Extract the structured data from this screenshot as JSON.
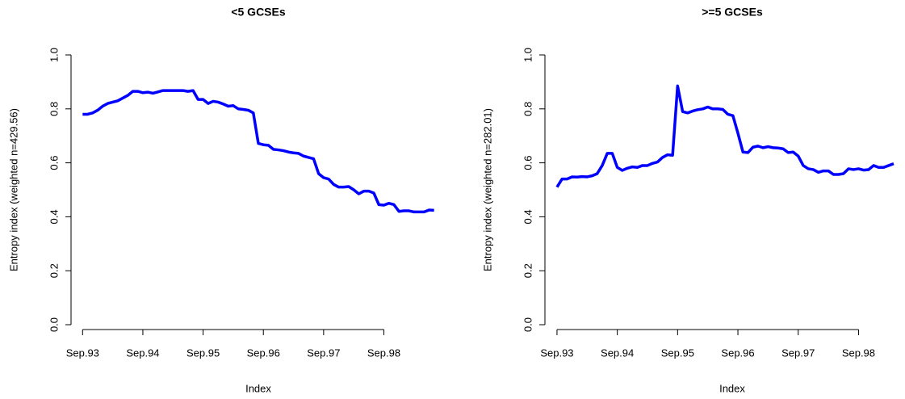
{
  "chart_data": [
    {
      "type": "line",
      "title": "<5 GCSEs",
      "xlabel": "Index",
      "ylabel": "Entropy index (weighted n=429.56)",
      "x": [
        0,
        1,
        2,
        3,
        4,
        5,
        6,
        7,
        8,
        9,
        10,
        11,
        12,
        13,
        14,
        15,
        16,
        17,
        18,
        19,
        20,
        21,
        22,
        23,
        24,
        25,
        26,
        27,
        28,
        29,
        30,
        31,
        32,
        33,
        34,
        35,
        36,
        37,
        38,
        39,
        40,
        41,
        42,
        43,
        44,
        45,
        46,
        47,
        48,
        49,
        50,
        51,
        52,
        53,
        54,
        55,
        56,
        57,
        58,
        59,
        60,
        61,
        62,
        63,
        64,
        65,
        66,
        67,
        68,
        69,
        70
      ],
      "series": [
        {
          "name": "<5 GCSEs",
          "color": "#0000ff",
          "values": [
            0.78,
            0.78,
            0.785,
            0.795,
            0.81,
            0.82,
            0.825,
            0.83,
            0.84,
            0.85,
            0.865,
            0.865,
            0.86,
            0.862,
            0.858,
            0.863,
            0.868,
            0.868,
            0.868,
            0.868,
            0.868,
            0.865,
            0.868,
            0.835,
            0.835,
            0.82,
            0.828,
            0.825,
            0.818,
            0.81,
            0.812,
            0.8,
            0.798,
            0.795,
            0.785,
            0.672,
            0.667,
            0.665,
            0.65,
            0.648,
            0.645,
            0.64,
            0.637,
            0.635,
            0.625,
            0.62,
            0.615,
            0.56,
            0.545,
            0.54,
            0.52,
            0.51,
            0.51,
            0.512,
            0.5,
            0.485,
            0.495,
            0.495,
            0.488,
            0.445,
            0.443,
            0.45,
            0.445,
            0.42,
            0.422,
            0.422,
            0.418,
            0.418,
            0.418,
            0.425,
            0.424
          ]
        }
      ],
      "xlim": [
        -2.3,
        72.3
      ],
      "xticks": [
        {
          "value": 0,
          "label": "Sep.93"
        },
        {
          "value": 12,
          "label": "Sep.94"
        },
        {
          "value": 24,
          "label": "Sep.95"
        },
        {
          "value": 36,
          "label": "Sep.96"
        },
        {
          "value": 48,
          "label": "Sep.97"
        },
        {
          "value": 60,
          "label": "Sep.98"
        }
      ],
      "ylim": [
        0,
        1
      ],
      "yticks": [
        {
          "value": 0,
          "label": "0.0"
        },
        {
          "value": 0.2,
          "label": "0.2"
        },
        {
          "value": 0.4,
          "label": "0.4"
        },
        {
          "value": 0.6,
          "label": "0.6"
        },
        {
          "value": 0.8,
          "label": "0.8"
        },
        {
          "value": 1,
          "label": "1.0"
        }
      ]
    },
    {
      "type": "line",
      "title": ">=5 GCSEs",
      "xlabel": "Index",
      "ylabel": "Entropy index (weighted n=282.01)",
      "x": [
        0,
        1,
        2,
        3,
        4,
        5,
        6,
        7,
        8,
        9,
        10,
        11,
        12,
        13,
        14,
        15,
        16,
        17,
        18,
        19,
        20,
        21,
        22,
        23,
        24,
        25,
        26,
        27,
        28,
        29,
        30,
        31,
        32,
        33,
        34,
        35,
        36,
        37,
        38,
        39,
        40,
        41,
        42,
        43,
        44,
        45,
        46,
        47,
        48,
        49,
        50,
        51,
        52,
        53,
        54,
        55,
        56,
        57,
        58,
        59,
        60,
        61,
        62,
        63,
        64,
        65,
        66,
        67
      ],
      "series": [
        {
          "name": ">=5 GCSEs",
          "color": "#0000ff",
          "values": [
            0.51,
            0.54,
            0.54,
            0.548,
            0.547,
            0.549,
            0.548,
            0.552,
            0.56,
            0.59,
            0.635,
            0.635,
            0.583,
            0.572,
            0.58,
            0.585,
            0.583,
            0.59,
            0.59,
            0.598,
            0.603,
            0.62,
            0.63,
            0.628,
            0.885,
            0.79,
            0.785,
            0.792,
            0.797,
            0.8,
            0.807,
            0.8,
            0.8,
            0.798,
            0.78,
            0.775,
            0.71,
            0.64,
            0.638,
            0.658,
            0.662,
            0.656,
            0.66,
            0.656,
            0.655,
            0.652,
            0.638,
            0.64,
            0.625,
            0.59,
            0.578,
            0.575,
            0.565,
            0.57,
            0.57,
            0.557,
            0.557,
            0.56,
            0.578,
            0.575,
            0.578,
            0.573,
            0.575,
            0.59,
            0.583,
            0.583,
            0.59,
            0.597
          ]
        }
      ],
      "xlim": [
        -2.4,
        67
      ],
      "xticks": [
        {
          "value": 0,
          "label": "Sep.93"
        },
        {
          "value": 12,
          "label": "Sep.94"
        },
        {
          "value": 24,
          "label": "Sep.95"
        },
        {
          "value": 36,
          "label": "Sep.96"
        },
        {
          "value": 48,
          "label": "Sep.97"
        },
        {
          "value": 60,
          "label": "Sep.98"
        }
      ],
      "ylim": [
        0,
        1
      ],
      "yticks": [
        {
          "value": 0,
          "label": "0.0"
        },
        {
          "value": 0.2,
          "label": "0.2"
        },
        {
          "value": 0.4,
          "label": "0.4"
        },
        {
          "value": 0.6,
          "label": "0.6"
        },
        {
          "value": 0.8,
          "label": "0.8"
        },
        {
          "value": 1,
          "label": "1.0"
        }
      ]
    }
  ]
}
